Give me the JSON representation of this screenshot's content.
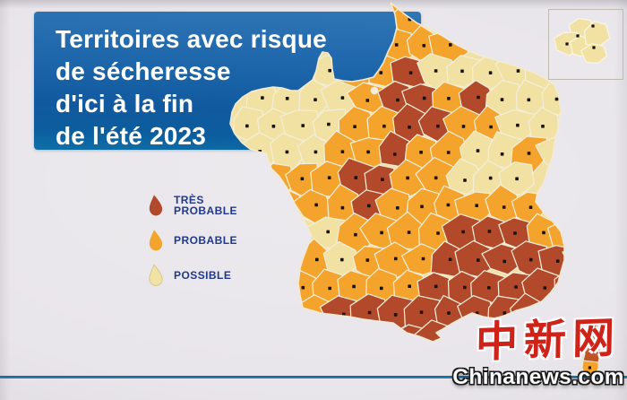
{
  "title": {
    "lines": [
      "Territoires avec risque",
      "de sécheresse",
      "d'ici à la fin",
      "de l'été 2023"
    ]
  },
  "legend": {
    "text_color": "#21398c",
    "items": [
      {
        "id": "tres_probable",
        "label": "TRÈS PROBABLE",
        "color": "#b3492b",
        "outline": ""
      },
      {
        "id": "probable",
        "label": "PROBABLE",
        "color": "#f2a42e",
        "outline": ""
      },
      {
        "id": "possible",
        "label": "POSSIBLE",
        "color": "#f1e3a6",
        "outline": "#d6c98c"
      }
    ]
  },
  "map": {
    "risk_colors": {
      "R": "#b3492b",
      "O": "#f4a42d",
      "Y": "#f1e2a4"
    },
    "risk_names": {
      "R": "tres_probable",
      "O": "probable",
      "Y": "possible"
    },
    "border_color": "#f4edd8",
    "dot_color": "#1a120b",
    "grid": [
      ".....OO......",
      "....OOOO.....",
      "...YOORYYYYY.",
      "YYYYORRORYYY.",
      "YYYYOORROOYY.",
      "YYYOOROOYYOY.",
      ".OOORROOYYY..",
      ".OOOROOOOOO..",
      "..YYOOOORRROO",
      ".OOYOOORRRRRR",
      "..OOOOORRRRRR",
      ".OORRRRRRRR..",
      "......RR....."
    ],
    "corsica": {
      "north": "R",
      "south": "O"
    },
    "inset_region": {
      "risk": "Y",
      "dots": 4
    }
  },
  "theme": {
    "background": "#e9e6eb",
    "title_bg": "#1d66aa",
    "divider_color": "#2a7aa9"
  },
  "watermark": {
    "cn": "中新网",
    "en": "Chinanews.com",
    "cn_color": "#cf231a"
  }
}
